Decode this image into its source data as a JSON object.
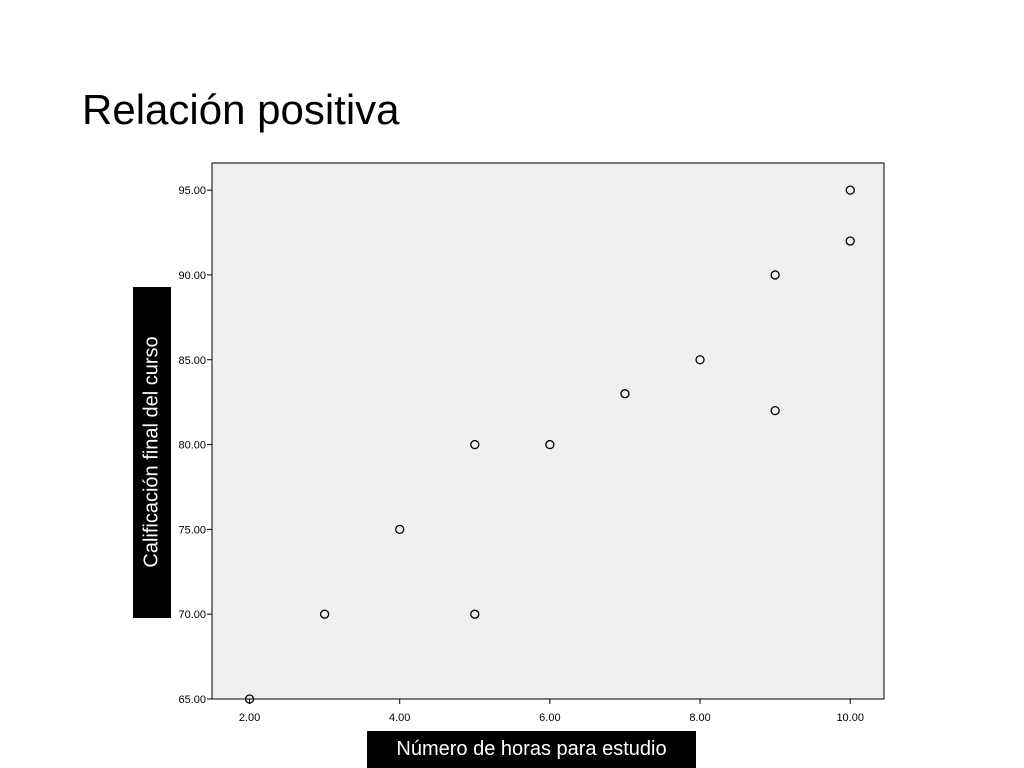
{
  "slide": {
    "title": "Relación positiva"
  },
  "chart_data": {
    "type": "scatter",
    "title": "",
    "xlabel": "Número de horas para estudio",
    "ylabel": "Calificación final del curso",
    "xlim": [
      1.5,
      10.45
    ],
    "ylim": [
      65,
      96.6
    ],
    "x_ticks": [
      "2.00",
      "4.00",
      "6.00",
      "8.00",
      "10.00"
    ],
    "x_tick_values": [
      2,
      4,
      6,
      8,
      10
    ],
    "y_ticks": [
      "65.00",
      "70.00",
      "75.00",
      "80.00",
      "85.00",
      "90.00",
      "95.00"
    ],
    "y_tick_values": [
      65,
      70,
      75,
      80,
      85,
      90,
      95
    ],
    "grid": false,
    "plot_background": "#f0f0f0",
    "marker": "open-circle",
    "points": [
      {
        "x": 2,
        "y": 65
      },
      {
        "x": 3,
        "y": 70
      },
      {
        "x": 4,
        "y": 75
      },
      {
        "x": 5,
        "y": 70
      },
      {
        "x": 5,
        "y": 80
      },
      {
        "x": 6,
        "y": 80
      },
      {
        "x": 7,
        "y": 83
      },
      {
        "x": 8,
        "y": 85
      },
      {
        "x": 9,
        "y": 82
      },
      {
        "x": 9,
        "y": 90
      },
      {
        "x": 10,
        "y": 92
      },
      {
        "x": 10,
        "y": 95
      }
    ]
  }
}
